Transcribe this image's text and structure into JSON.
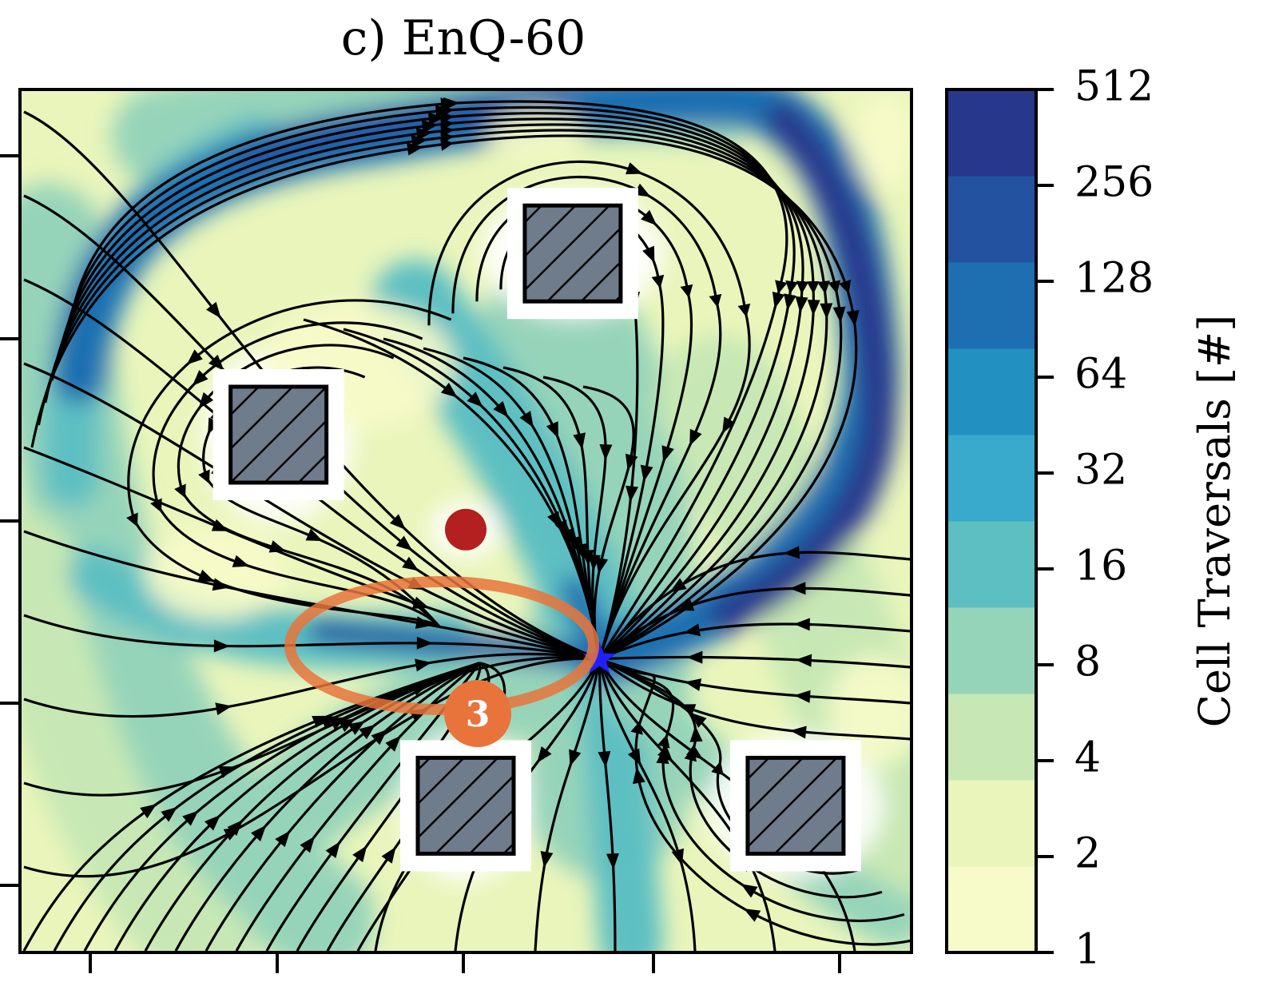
{
  "chart_data": {
    "type": "heatmap",
    "title": "c) EnQ-60",
    "colorbar": {
      "label": "Cell Traversals [#]",
      "ticks": [
        "1",
        "2",
        "4",
        "8",
        "16",
        "32",
        "64",
        "128",
        "256",
        "512"
      ],
      "scale": "log2",
      "colors": [
        "#f7fbc9",
        "#e9f5bb",
        "#c7e8b4",
        "#96d4ba",
        "#5dbfc2",
        "#39a9cc",
        "#2290c1",
        "#1e6fb1",
        "#2353a0",
        "#27378c"
      ]
    },
    "obstacles": [
      {
        "name": "obstacle-top-middle",
        "x": 0.62,
        "y": 0.19
      },
      {
        "name": "obstacle-middle-left",
        "x": 0.29,
        "y": 0.4
      },
      {
        "name": "obstacle-bottom-middle",
        "x": 0.5,
        "y": 0.83
      },
      {
        "name": "obstacle-bottom-right",
        "x": 0.87,
        "y": 0.83
      }
    ],
    "goal_marker": {
      "shape": "star",
      "color": "#1f1fff",
      "x": 0.65,
      "y": 0.66
    },
    "start_marker": {
      "shape": "circle",
      "color": "#b41f1f",
      "x": 0.5,
      "y": 0.51
    },
    "annotation": {
      "label": "3",
      "shape": "ellipse",
      "color": "#e8743b"
    }
  }
}
